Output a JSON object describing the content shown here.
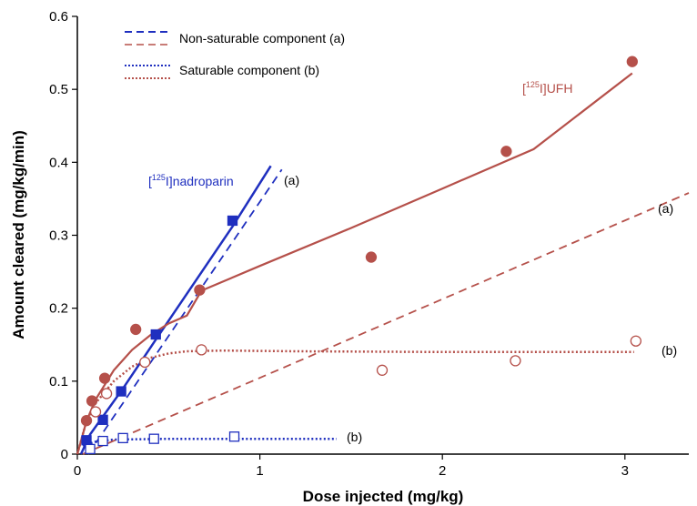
{
  "colors": {
    "nadroparin": "#1f2fbf",
    "ufh": "#b5504a",
    "axis": "#000000"
  },
  "chart_data": {
    "type": "scatter",
    "xlabel": "Dose injected (mg/kg)",
    "ylabel": "Amount cleared (mg/kg/min)",
    "xlim": [
      0,
      3.35
    ],
    "ylim": [
      0,
      0.6
    ],
    "x_ticks": [
      0,
      1,
      2,
      3
    ],
    "y_ticks": [
      0,
      0.1,
      0.2,
      0.3,
      0.4,
      0.5,
      0.6
    ],
    "x_tick_labels": [
      "0",
      "1",
      "2",
      "3"
    ],
    "y_tick_labels": [
      "0",
      "0.1",
      "0.2",
      "0.3",
      "0.4",
      "0.5",
      "0.6"
    ],
    "legend": {
      "position": "top-left",
      "entries": [
        {
          "label": "Non-saturable component (a)",
          "style": "dashed"
        },
        {
          "label": "Saturable component (b)",
          "style": "dotted"
        }
      ]
    },
    "series": [
      {
        "compound": "nadroparin",
        "kind": "measured",
        "marker": "filled-square",
        "x": [
          0.05,
          0.14,
          0.24,
          0.43,
          0.85
        ],
        "y": [
          0.019,
          0.047,
          0.086,
          0.164,
          0.32
        ]
      },
      {
        "compound": "nadroparin",
        "kind": "saturable",
        "marker": "open-square",
        "x": [
          0.07,
          0.14,
          0.25,
          0.42,
          0.86
        ],
        "y": [
          0.007,
          0.018,
          0.022,
          0.021,
          0.024
        ]
      },
      {
        "compound": "ufh",
        "kind": "measured",
        "marker": "filled-circle",
        "x": [
          0.05,
          0.08,
          0.15,
          0.32,
          0.67,
          1.61,
          2.35,
          3.04
        ],
        "y": [
          0.046,
          0.073,
          0.104,
          0.171,
          0.225,
          0.27,
          0.415,
          0.538
        ]
      },
      {
        "compound": "ufh",
        "kind": "saturable",
        "marker": "open-circle",
        "x": [
          0.1,
          0.16,
          0.37,
          0.68,
          1.67,
          2.4,
          3.06
        ],
        "y": [
          0.058,
          0.083,
          0.126,
          0.143,
          0.115,
          0.128,
          0.155
        ]
      }
    ],
    "fits": [
      {
        "compound": "nadroparin",
        "kind": "total",
        "style": "solid",
        "x": [
          0.02,
          0.07,
          0.15,
          0.25,
          0.43,
          0.85,
          1.06
        ],
        "y": [
          0.0,
          0.027,
          0.055,
          0.09,
          0.157,
          0.312,
          0.395
        ]
      },
      {
        "compound": "nadroparin",
        "kind": "non-saturable (a)",
        "style": "dashed",
        "x": [
          0.06,
          1.12
        ],
        "y": [
          0.0,
          0.39
        ]
      },
      {
        "compound": "nadroparin",
        "kind": "saturable (b)",
        "style": "dotted",
        "x": [
          0.03,
          0.1,
          0.2,
          0.5,
          1.0,
          1.42
        ],
        "y": [
          0.012,
          0.017,
          0.02,
          0.021,
          0.021,
          0.021
        ]
      },
      {
        "compound": "ufh",
        "kind": "total",
        "style": "solid",
        "x": [
          0.0,
          0.05,
          0.1,
          0.2,
          0.3,
          0.4,
          0.5,
          0.6,
          0.68,
          1.0,
          1.5,
          2.0,
          2.5,
          3.04
        ],
        "y": [
          0.0,
          0.045,
          0.075,
          0.115,
          0.143,
          0.163,
          0.179,
          0.19,
          0.224,
          0.258,
          0.31,
          0.364,
          0.418,
          0.522
        ]
      },
      {
        "compound": "ufh",
        "kind": "non-saturable (a)",
        "style": "dashed",
        "x": [
          0.03,
          3.35
        ],
        "y": [
          0.0,
          0.358
        ]
      },
      {
        "compound": "ufh",
        "kind": "saturable (b)",
        "style": "dotted",
        "x": [
          0.0,
          0.05,
          0.1,
          0.2,
          0.3,
          0.4,
          0.5,
          0.6,
          0.8,
          1.2,
          2.0,
          2.6,
          3.05
        ],
        "y": [
          0.0,
          0.045,
          0.07,
          0.1,
          0.12,
          0.132,
          0.138,
          0.141,
          0.142,
          0.141,
          0.14,
          0.14,
          0.14
        ]
      }
    ],
    "annotations": {
      "nadroparin_label_prefix": "[",
      "nadroparin_label_sup": "125",
      "nadroparin_label_suffix": "I]nadroparin",
      "ufh_label_prefix": "[",
      "ufh_label_sup": "125",
      "ufh_label_suffix": "I]UFH",
      "nadroparin_a": "(a)",
      "nadroparin_b": "(b)",
      "ufh_a": "(a)",
      "ufh_b": "(b)"
    }
  }
}
